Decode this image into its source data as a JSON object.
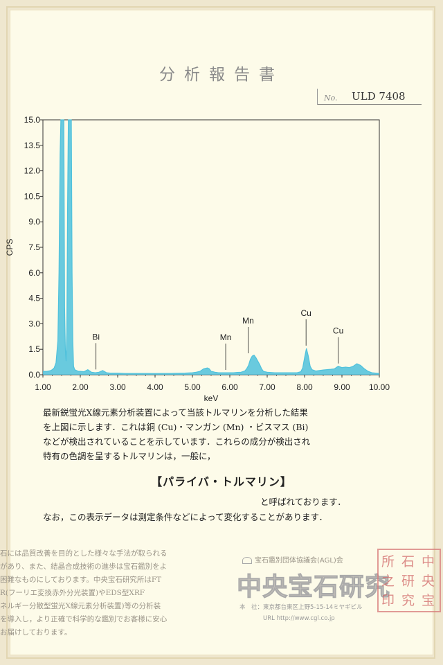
{
  "document": {
    "title": "分析報告書",
    "no_label": "No.",
    "no_value": "ULD 7408"
  },
  "chart_data": {
    "type": "line",
    "xlabel": "keV",
    "ylabel": "CPS",
    "xlim": [
      1.0,
      10.0
    ],
    "ylim": [
      0.0,
      15.0
    ],
    "x_ticks": [
      "1.00",
      "2.00",
      "3.00",
      "4.00",
      "5.00",
      "6.00",
      "7.00",
      "8.00",
      "9.00",
      "10.00"
    ],
    "y_ticks": [
      "0.0",
      "1.5",
      "3.0",
      "4.5",
      "6.0",
      "7.5",
      "9.0",
      "10.5",
      "12.0",
      "13.5",
      "15.0"
    ],
    "color": "#4fc1dc",
    "annotations": [
      {
        "label": "Bi",
        "x": 2.42
      },
      {
        "label": "Mn",
        "x": 5.89
      },
      {
        "label": "Mn",
        "x": 6.49
      },
      {
        "label": "Cu",
        "x": 8.04
      },
      {
        "label": "Cu",
        "x": 8.9
      }
    ],
    "series": [
      {
        "x": [
          1.0,
          1.05,
          1.1,
          1.15,
          1.2,
          1.25,
          1.3,
          1.35,
          1.4,
          1.43,
          1.46,
          1.48,
          1.5,
          1.52,
          1.54,
          1.56,
          1.58,
          1.6,
          1.62,
          1.64,
          1.66,
          1.68,
          1.7,
          1.72,
          1.74,
          1.76,
          1.78,
          1.8,
          1.82,
          1.85,
          1.9,
          1.95,
          2.0,
          2.1,
          2.2,
          2.3,
          2.4,
          2.5,
          2.6,
          2.7,
          2.8,
          3.0,
          3.2,
          3.4,
          3.6,
          3.8,
          4.0,
          4.2,
          4.4,
          4.6,
          4.8,
          5.0,
          5.1,
          5.2,
          5.3,
          5.4,
          5.45,
          5.5,
          5.55,
          5.6,
          5.7,
          5.8,
          5.9,
          6.0,
          6.1,
          6.2,
          6.3,
          6.4,
          6.45,
          6.5,
          6.55,
          6.6,
          6.65,
          6.7,
          6.75,
          6.8,
          6.85,
          6.9,
          7.0,
          7.2,
          7.4,
          7.6,
          7.8,
          7.9,
          7.95,
          8.0,
          8.05,
          8.1,
          8.15,
          8.2,
          8.3,
          8.4,
          8.5,
          8.6,
          8.7,
          8.8,
          8.9,
          9.0,
          9.1,
          9.2,
          9.3,
          9.4,
          9.5,
          9.6,
          9.7,
          9.8,
          10.0
        ],
        "y": [
          0.2,
          0.2,
          0.2,
          0.22,
          0.24,
          0.3,
          0.4,
          0.7,
          2.0,
          6.0,
          13.0,
          15.0,
          15.0,
          15.0,
          15.0,
          15.0,
          4.0,
          1.5,
          0.8,
          2.5,
          10.0,
          15.0,
          15.0,
          15.0,
          15.0,
          15.0,
          6.0,
          2.0,
          0.5,
          0.3,
          0.25,
          0.2,
          0.2,
          0.18,
          0.3,
          0.15,
          0.12,
          0.15,
          0.25,
          0.12,
          0.1,
          0.1,
          0.08,
          0.08,
          0.08,
          0.08,
          0.07,
          0.08,
          0.08,
          0.09,
          0.1,
          0.12,
          0.15,
          0.2,
          0.35,
          0.4,
          0.35,
          0.2,
          0.18,
          0.15,
          0.12,
          0.12,
          0.12,
          0.12,
          0.12,
          0.14,
          0.15,
          0.22,
          0.35,
          0.55,
          0.9,
          1.1,
          1.15,
          1.0,
          0.8,
          0.6,
          0.35,
          0.2,
          0.15,
          0.12,
          0.12,
          0.12,
          0.12,
          0.18,
          0.4,
          1.0,
          1.55,
          1.1,
          0.5,
          0.3,
          0.22,
          0.25,
          0.28,
          0.3,
          0.32,
          0.35,
          0.5,
          0.42,
          0.45,
          0.42,
          0.5,
          0.65,
          0.55,
          0.35,
          0.2,
          0.12,
          0.08
        ]
      }
    ]
  },
  "body": {
    "line1": "最新鋭蛍光X線元素分析装置によって当該トルマリンを分析した結果",
    "line2": "を上図に示します．これは銅 (Cu)・マンガン (Mn) ・ビスマス (Bi)",
    "line3": "などが検出されていることを示しています．これらの成分が検出され",
    "line4": "特有の色調を呈するトルマリンは，一般に，",
    "headline": "【パライバ・トルマリン】",
    "line5": "と呼ばれております．",
    "line6": "なお，この表示データは測定条件などによって変化することがあります．"
  },
  "footer": {
    "lines": [
      "石には品質改善を目的とした様々な手法が取られる",
      "があり、また、結晶合成技術の進歩は宝石鑑別をよ",
      "困難なものにしております。中央宝石研究所はFT",
      "R(フーリエ変換赤外分光装置)やEDS型XRF",
      "ネルギー分散型蛍光X線元素分析装置)等の分析装",
      "を導入し，より正確で科学的な鑑別でお客様に安心",
      "お届けしております。"
    ],
    "association": "宝石鑑別団体協議会(AGL)会",
    "logo": "中央宝石研究",
    "address": "本　社：東京都台東区上野5-15-14ミヤギビル",
    "url": "URL http://www.cgl.co.jp",
    "seal": [
      "中",
      "央",
      "宝",
      "石",
      "研",
      "究",
      "所",
      "之",
      "印"
    ]
  }
}
